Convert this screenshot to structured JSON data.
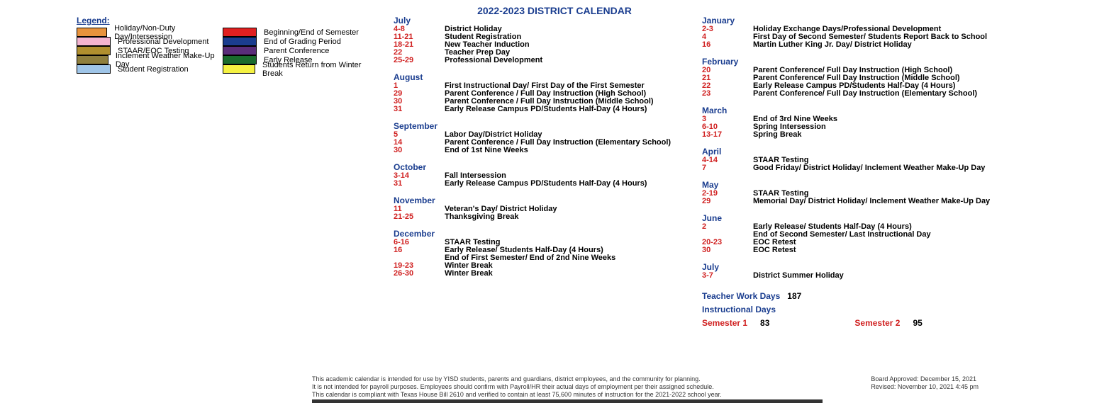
{
  "title": "2022-2023 DISTRICT CALENDAR",
  "legend_title": "Legend:",
  "legend_col1": [
    {
      "color": "#e8933c",
      "label": "Holiday/Non-Duty Day/Intersession"
    },
    {
      "color": "#f4b4d0",
      "label": "Professional Development"
    },
    {
      "color": "#b08f2e",
      "label": "STAAR/EOC Testing"
    },
    {
      "color": "#8f7f3d",
      "label": "Inclement Weather Make-Up Day"
    },
    {
      "color": "#9fc5e8",
      "label": "Student Registration"
    }
  ],
  "legend_col2": [
    {
      "color": "#e02020",
      "label": "Beginning/End of Semester"
    },
    {
      "color": "#1a3d8f",
      "label": "End of Grading Period"
    },
    {
      "color": "#5a2d7a",
      "label": "Parent Conference"
    },
    {
      "color": "#1a6b2d",
      "label": "Early Release"
    },
    {
      "color": "#f5f242",
      "label": "Students Return from Winter Break"
    }
  ],
  "months_mid": [
    {
      "name": "July",
      "events": [
        {
          "d": "4-8",
          "t": "District Holiday"
        },
        {
          "d": "11-21",
          "t": "Student Registration"
        },
        {
          "d": "18-21",
          "t": "New Teacher Induction"
        },
        {
          "d": "22",
          "t": "Teacher Prep Day"
        },
        {
          "d": "25-29",
          "t": "Professional Development"
        }
      ]
    },
    {
      "name": "August",
      "events": [
        {
          "d": "1",
          "t": "First Instructional Day/ First Day of the First Semester"
        },
        {
          "d": "29",
          "t": "Parent Conference / Full Day Instruction (High School)"
        },
        {
          "d": "30",
          "t": "Parent Conference / Full Day Instruction (Middle School)"
        },
        {
          "d": "31",
          "t": " Early Release Campus PD/Students Half-Day (4 Hours)"
        }
      ]
    },
    {
      "name": "September",
      "events": [
        {
          "d": "5",
          "t": "Labor Day/District Holiday"
        },
        {
          "d": "14",
          "t": " Parent Conference / Full Day Instruction (Elementary School)"
        },
        {
          "d": "30",
          "t": "End of 1st Nine Weeks"
        }
      ]
    },
    {
      "name": "October",
      "events": [
        {
          "d": "3-14",
          "t": "Fall Intersession"
        },
        {
          "d": "31",
          "t": "Early Release Campus PD/Students Half-Day (4 Hours)"
        }
      ]
    },
    {
      "name": "November",
      "events": [
        {
          "d": "11",
          "t": "Veteran's Day/ District Holiday"
        },
        {
          "d": "21-25",
          "t": "Thanksgiving Break"
        }
      ]
    },
    {
      "name": "December",
      "events": [
        {
          "d": "6-16",
          "t": "STAAR Testing"
        },
        {
          "d": "16",
          "t": "Early Release/ Students Half-Day (4 Hours)"
        },
        {
          "d": "",
          "t": "End of First Semester/ End of 2nd Nine Weeks"
        },
        {
          "d": "19-23",
          "t": "Winter Break"
        },
        {
          "d": "26-30",
          "t": "Winter Break"
        }
      ]
    }
  ],
  "months_right": [
    {
      "name": "January",
      "events": [
        {
          "d": "2-3",
          "t": "Holiday Exchange Days/Professional Development"
        },
        {
          "d": "4",
          "t": "First Day of Second Semester/ Students Report Back to School"
        },
        {
          "d": "16",
          "t": "Martin Luther King Jr. Day/ District Holiday"
        }
      ]
    },
    {
      "name": "February",
      "events": [
        {
          "d": "20",
          "t": "Parent Conference/ Full Day Instruction (High School)"
        },
        {
          "d": "21",
          "t": "Parent Conference/ Full Day Instruction (Middle School)"
        },
        {
          "d": "22",
          "t": "Early Release Campus PD/Students Half-Day (4 Hours)"
        },
        {
          "d": "23",
          "t": "Parent Conference/ Full Day Instruction (Elementary School)"
        }
      ]
    },
    {
      "name": "March",
      "events": [
        {
          "d": "3",
          "t": "End of 3rd Nine Weeks"
        },
        {
          "d": "6-10",
          "t": "Spring Intersession"
        },
        {
          "d": "13-17",
          "t": "Spring Break"
        }
      ]
    },
    {
      "name": "April",
      "events": [
        {
          "d": "4-14",
          "t": "STAAR Testing"
        },
        {
          "d": "7",
          "t": "Good Friday/ District Holiday/ Inclement Weather Make-Up Day"
        }
      ]
    },
    {
      "name": "May",
      "events": [
        {
          "d": "2-19",
          "t": "STAAR Testing"
        },
        {
          "d": "29",
          "t": "Memorial Day/ District Holiday/ Inclement Weather Make-Up Day"
        }
      ]
    },
    {
      "name": "June",
      "events": [
        {
          "d": "2",
          "t": "Early Release/ Students Half-Day (4 Hours)"
        },
        {
          "d": "",
          "t": "End of Second Semester/ Last Instructional Day"
        },
        {
          "d": "20-23",
          "t": "EOC Retest"
        },
        {
          "d": "30",
          "t": "EOC Retest"
        }
      ]
    },
    {
      "name": "July",
      "events": [
        {
          "d": "3-7",
          "t": "District Summer Holiday"
        }
      ]
    }
  ],
  "teacher_label": "Teacher Work Days",
  "teacher_days": "187",
  "instructional_label": "Instructional Days",
  "sem1_label": "Semester 1",
  "sem1_days": "83",
  "sem2_label": "Semester 2",
  "sem2_days": "95",
  "footer_line1": "This academic calendar is intended for use by YISD students, parents and guardians, district employees, and the community for planning.",
  "footer_line2": "It is not intended for payroll purposes. Employees should confirm with Payroll/HR their actual days of employment per their assigned schedule.",
  "footer_line3": "This calendar is compliant with Texas House Bill 2610 and verified to contain at least 75,600 minutes of instruction for the 2021-2022 school year.",
  "footer_approved": "Board Approved: December 15, 2021",
  "footer_revised": "Revised: November 10, 2021 4:45 pm"
}
